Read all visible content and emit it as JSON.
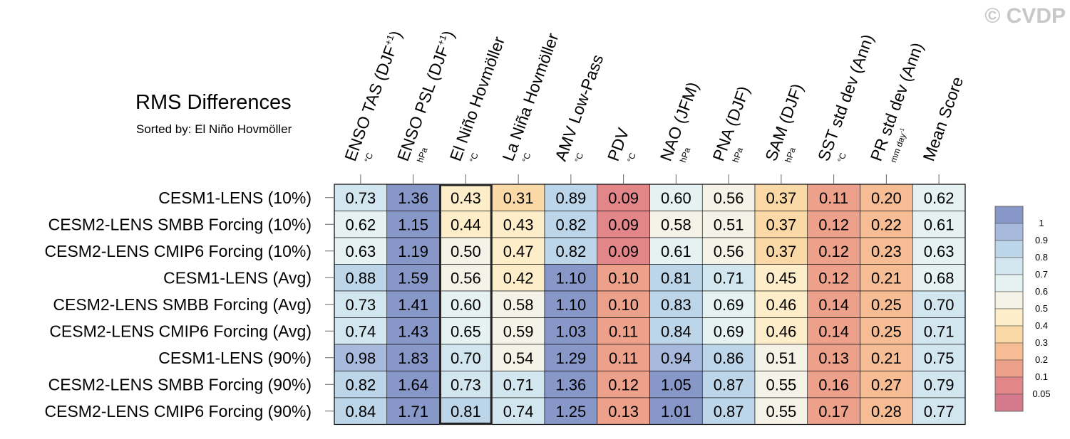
{
  "header": {
    "title": "RMS Differences",
    "subtitle": "Sorted by: El Niño Hovmöller",
    "copyright": "© CVDP"
  },
  "chart_data": {
    "type": "heatmap",
    "title": "RMS Differences",
    "subtitle": "Sorted by: El Niño Hovmöller",
    "columns": [
      {
        "label": "ENSO TAS (DJF",
        "sup": "+1",
        "close": ")",
        "unit": "°C"
      },
      {
        "label": "ENSO PSL (DJF",
        "sup": "+1",
        "close": ")",
        "unit": "hPa"
      },
      {
        "label": "El Niño Hovmöller",
        "unit": "°C"
      },
      {
        "label": "La Niña Hovmöller",
        "unit": "°C"
      },
      {
        "label": "AMV Low-Pass",
        "unit": "°C"
      },
      {
        "label": "PDV",
        "unit": "°C"
      },
      {
        "label": "NAO (JFM)",
        "unit": "hPa"
      },
      {
        "label": "PNA (DJF)",
        "unit": "hPa"
      },
      {
        "label": "SAM (DJF)",
        "unit": "hPa"
      },
      {
        "label": "SST std dev (Ann)",
        "unit": "°C"
      },
      {
        "label": "PR std dev (Ann)",
        "unit": "mm day",
        "unit_sup": "-1"
      },
      {
        "label": "Mean Score",
        "unit": ""
      }
    ],
    "rows": [
      "CESM1-LENS (10%)",
      "CESM2-LENS SMBB Forcing (10%)",
      "CESM2-LENS CMIP6 Forcing (10%)",
      "CESM1-LENS (Avg)",
      "CESM2-LENS SMBB Forcing (Avg)",
      "CESM2-LENS CMIP6 Forcing (Avg)",
      "CESM1-LENS (90%)",
      "CESM2-LENS SMBB Forcing (90%)",
      "CESM2-LENS CMIP6 Forcing (90%)"
    ],
    "values": [
      [
        "0.73",
        "1.36",
        "0.43",
        "0.31",
        "0.89",
        "0.09",
        "0.60",
        "0.56",
        "0.37",
        "0.11",
        "0.20",
        "0.62"
      ],
      [
        "0.62",
        "1.15",
        "0.44",
        "0.43",
        "0.82",
        "0.09",
        "0.58",
        "0.51",
        "0.37",
        "0.12",
        "0.22",
        "0.61"
      ],
      [
        "0.63",
        "1.19",
        "0.50",
        "0.47",
        "0.82",
        "0.09",
        "0.61",
        "0.56",
        "0.37",
        "0.12",
        "0.23",
        "0.63"
      ],
      [
        "0.88",
        "1.59",
        "0.56",
        "0.42",
        "1.10",
        "0.10",
        "0.81",
        "0.71",
        "0.45",
        "0.12",
        "0.21",
        "0.68"
      ],
      [
        "0.73",
        "1.41",
        "0.60",
        "0.58",
        "1.10",
        "0.10",
        "0.83",
        "0.69",
        "0.46",
        "0.14",
        "0.25",
        "0.70"
      ],
      [
        "0.74",
        "1.43",
        "0.65",
        "0.59",
        "1.03",
        "0.11",
        "0.84",
        "0.69",
        "0.46",
        "0.14",
        "0.25",
        "0.71"
      ],
      [
        "0.98",
        "1.83",
        "0.70",
        "0.54",
        "1.29",
        "0.11",
        "0.94",
        "0.86",
        "0.51",
        "0.13",
        "0.21",
        "0.75"
      ],
      [
        "0.82",
        "1.64",
        "0.73",
        "0.71",
        "1.36",
        "0.12",
        "1.05",
        "0.87",
        "0.55",
        "0.16",
        "0.27",
        "0.79"
      ],
      [
        "0.84",
        "1.71",
        "0.81",
        "0.74",
        "1.25",
        "0.13",
        "1.01",
        "0.87",
        "0.55",
        "0.17",
        "0.28",
        "0.77"
      ]
    ],
    "highlighted_column": 2,
    "legend": {
      "labels": [
        "1",
        "0.9",
        "0.8",
        "0.7",
        "0.6",
        "0.5",
        "0.4",
        "0.3",
        "0.2",
        "0.1",
        "0.05"
      ],
      "boundaries": [
        1.0,
        0.9,
        0.8,
        0.7,
        0.6,
        0.5,
        0.4,
        0.3,
        0.2,
        0.1,
        0.05
      ],
      "colors": [
        "#8797c8",
        "#a7b9dd",
        "#bcd5e8",
        "#d2e6ef",
        "#e6f2f2",
        "#f5f3e8",
        "#fdeec9",
        "#fbd9a6",
        "#f6bd95",
        "#eda08a",
        "#e2868a",
        "#d57a8d"
      ]
    }
  }
}
